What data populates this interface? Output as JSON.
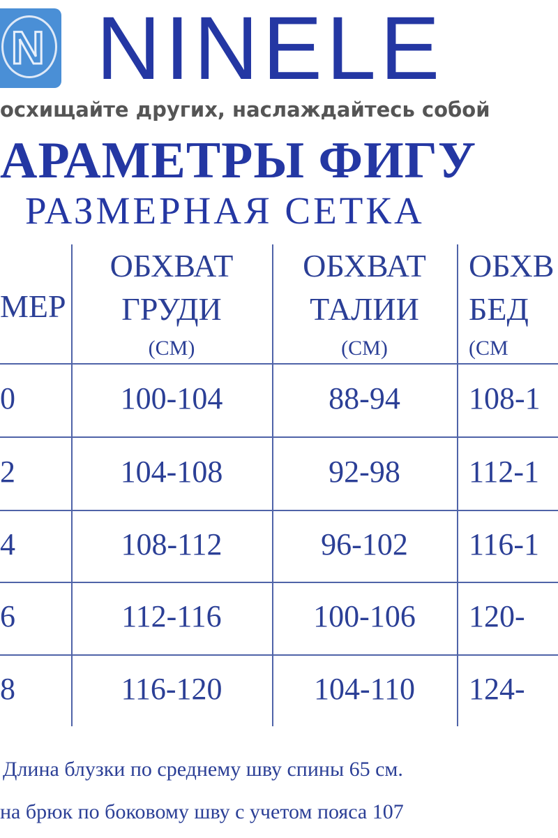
{
  "brand": {
    "logo_letter": "N",
    "name": "NINELE",
    "tagline": "осхищайте других, наслаждайтесь собой"
  },
  "title": "АРАМЕТРЫ ФИГУ",
  "subtitle": "РАЗМЕРНАЯ СЕТКА",
  "table": {
    "headers": [
      {
        "l1": "",
        "l2": "МЕР",
        "unit": ""
      },
      {
        "l1": "ОБХВАТ",
        "l2": "ГРУДИ",
        "unit": "(СМ)"
      },
      {
        "l1": "ОБХВАТ",
        "l2": "ТАЛИИ",
        "unit": "(СМ)"
      },
      {
        "l1": "ОБХВ",
        "l2": "БЕД",
        "unit": "(СМ"
      }
    ],
    "rows": [
      [
        "0",
        "100-104",
        "88-94",
        "108-1"
      ],
      [
        "2",
        "104-108",
        "92-98",
        "112-1"
      ],
      [
        "4",
        "108-112",
        "96-102",
        "116-1"
      ],
      [
        "6",
        "112-116",
        "100-106",
        "120-"
      ],
      [
        "8",
        "116-120",
        "104-110",
        "124-"
      ]
    ]
  },
  "notes": [
    "Длина блузки по среднему шву спины 65 см.",
    "на брюк по боковому шву с учетом пояса 107"
  ],
  "colors": {
    "brand": "#2437a3",
    "text": "#2b3f96",
    "logo_bg": "#4a8fd6"
  }
}
